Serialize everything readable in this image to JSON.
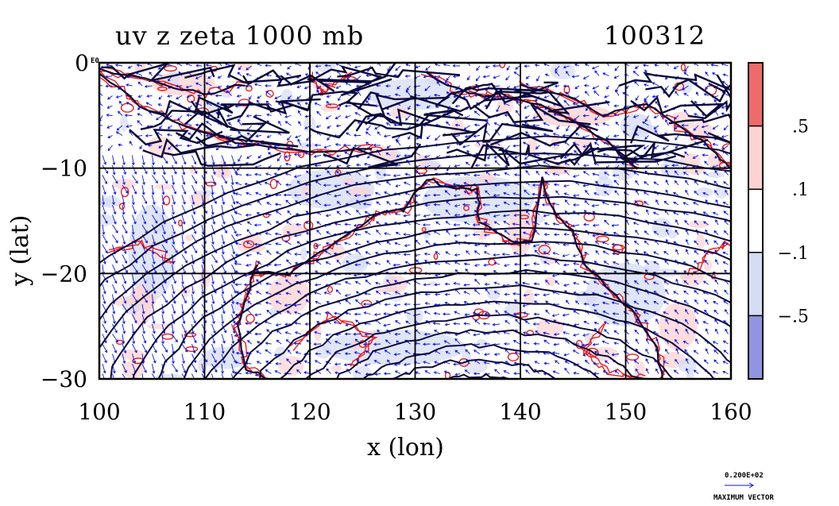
{
  "title": {
    "left": "uv z zeta 1000 mb",
    "right": "100312"
  },
  "chart_data": {
    "type": "heatmap",
    "variables": [
      "uv (wind vectors)",
      "z (height contours)",
      "zeta (vorticity shading)"
    ],
    "level": "1000 mb",
    "xlabel": "x (lon)",
    "ylabel": "y (lat)",
    "xlim": [
      100,
      160
    ],
    "ylim": [
      -30,
      0
    ],
    "x_ticks": [
      100,
      110,
      120,
      130,
      140,
      150,
      160
    ],
    "x_tick_labels": [
      "100",
      "110",
      "120",
      "130",
      "140",
      "150",
      "160"
    ],
    "y_ticks": [
      0,
      -10,
      -20,
      -30
    ],
    "y_tick_labels": [
      "0",
      "−10",
      "−20",
      "−30"
    ],
    "y_top_label_suffix": "E0",
    "grid": true,
    "colorbar": {
      "levels": [
        ".5",
        ".1",
        "−.1",
        "−.5"
      ],
      "bands": [
        {
          "range": "> .5",
          "color": "#ee6b6b"
        },
        {
          "range": ".1 to .5",
          "color": "#fcd2d2"
        },
        {
          "range": "−.1 to .1",
          "color": "#ffffff"
        },
        {
          "range": "−.5 to −.1",
          "color": "#d6dcf4"
        },
        {
          "range": "< −.5",
          "color": "#8f95e2"
        }
      ]
    },
    "reference_vector": {
      "value": "0.200E+02",
      "label": "MAXIMUM VECTOR"
    }
  },
  "colors": {
    "vector": "#0a14e6",
    "contour_height": "#0a0a3c",
    "contour_positive": "#ee1a1a",
    "grid": "#000000"
  }
}
